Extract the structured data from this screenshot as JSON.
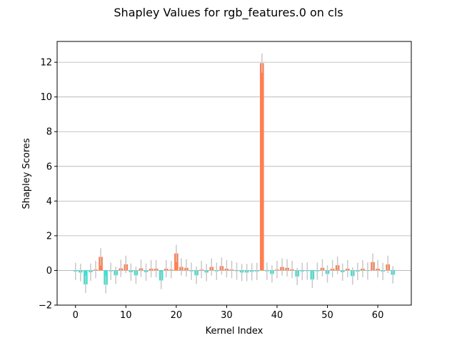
{
  "chart_data": {
    "type": "bar",
    "title": "Shapley Values for rgb_features.0 on cls",
    "xlabel": "Kernel Index",
    "ylabel": "Shapley Scores",
    "xlim": [
      -3.65,
      66.65
    ],
    "ylim": [
      -2.0,
      13.2
    ],
    "xticks": [
      0,
      10,
      20,
      30,
      40,
      50,
      60
    ],
    "yticks": [
      -2,
      0,
      2,
      4,
      6,
      8,
      10,
      12
    ],
    "grid": "y",
    "colors": {
      "positive": "#ff7f50",
      "negative": "#40e0d0",
      "error": "#c8c8c8",
      "grid": "#b0b0b0"
    },
    "x": [
      0,
      1,
      2,
      3,
      4,
      5,
      6,
      7,
      8,
      9,
      10,
      11,
      12,
      13,
      14,
      15,
      16,
      17,
      18,
      19,
      20,
      21,
      22,
      23,
      24,
      25,
      26,
      27,
      28,
      29,
      30,
      31,
      32,
      33,
      34,
      35,
      36,
      37,
      38,
      39,
      40,
      41,
      42,
      43,
      44,
      45,
      46,
      47,
      48,
      49,
      50,
      51,
      52,
      53,
      54,
      55,
      56,
      57,
      58,
      59,
      60,
      61,
      62,
      63
    ],
    "values": [
      -0.06,
      -0.12,
      -0.8,
      -0.1,
      0.05,
      0.78,
      -0.82,
      -0.05,
      -0.28,
      0.12,
      0.35,
      -0.1,
      -0.28,
      0.12,
      -0.1,
      0.1,
      0.1,
      -0.58,
      0.1,
      0.05,
      0.98,
      0.2,
      0.15,
      -0.05,
      -0.28,
      0.05,
      -0.12,
      0.2,
      -0.05,
      0.25,
      0.1,
      0.05,
      -0.04,
      -0.12,
      -0.12,
      -0.08,
      -0.06,
      11.95,
      -0.05,
      -0.2,
      0.05,
      0.2,
      0.15,
      0.06,
      -0.35,
      -0.06,
      -0.04,
      -0.52,
      -0.05,
      0.15,
      -0.2,
      0.1,
      0.3,
      -0.1,
      0.1,
      -0.32,
      -0.06,
      0.1,
      -0.03,
      0.48,
      0.1,
      -0.06,
      0.35,
      -0.25
    ],
    "errors": [
      0.5,
      0.5,
      0.5,
      0.5,
      0.5,
      0.5,
      0.5,
      0.5,
      0.5,
      0.5,
      0.5,
      0.5,
      0.5,
      0.5,
      0.5,
      0.5,
      0.5,
      0.5,
      0.5,
      0.5,
      0.5,
      0.5,
      0.5,
      0.5,
      0.5,
      0.5,
      0.5,
      0.5,
      0.5,
      0.5,
      0.5,
      0.5,
      0.5,
      0.5,
      0.5,
      0.5,
      0.5,
      0.55,
      0.5,
      0.5,
      0.5,
      0.5,
      0.5,
      0.5,
      0.5,
      0.5,
      0.5,
      0.5,
      0.5,
      0.5,
      0.5,
      0.5,
      0.5,
      0.5,
      0.5,
      0.5,
      0.5,
      0.5,
      0.5,
      0.5,
      0.5,
      0.5,
      0.5,
      0.5
    ]
  }
}
